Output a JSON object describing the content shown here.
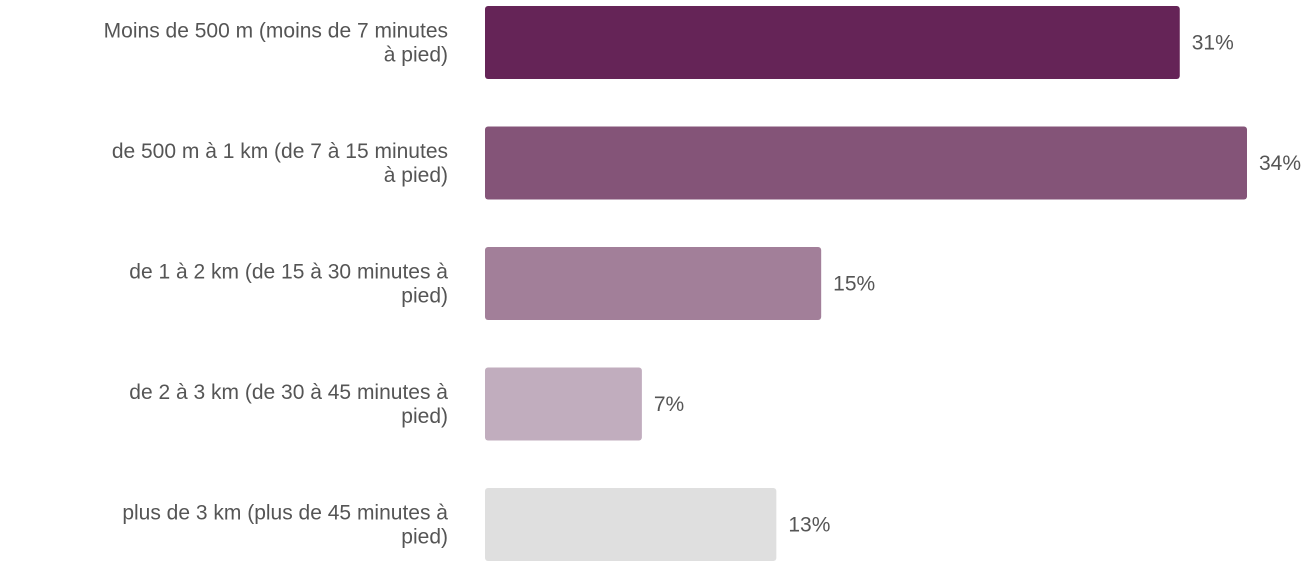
{
  "chart_data": {
    "type": "bar",
    "orientation": "horizontal",
    "categories": [
      [
        "Moins de 500 m (moins de 7 minutes",
        "à pied)"
      ],
      [
        "de 500 m à 1 km (de 7 à 15 minutes",
        "à pied)"
      ],
      [
        "de 1 à 2 km (de 15 à 30 minutes à",
        "pied)"
      ],
      [
        "de 2 à 3 km (de 30 à 45 minutes à",
        "pied)"
      ],
      [
        "plus de 3 km (plus de 45 minutes à",
        "pied)"
      ]
    ],
    "values": [
      31,
      34,
      15,
      7,
      13
    ],
    "value_labels": [
      "31%",
      "34%",
      "15%",
      "7%",
      "13%"
    ],
    "unit": "%",
    "xlim": [
      0,
      34
    ],
    "grid": false,
    "legend": "none",
    "colors": [
      "#652457",
      "#845478",
      "#a27f99",
      "#c1adbe",
      "#dfdfdf"
    ],
    "label_color": "#555555"
  }
}
